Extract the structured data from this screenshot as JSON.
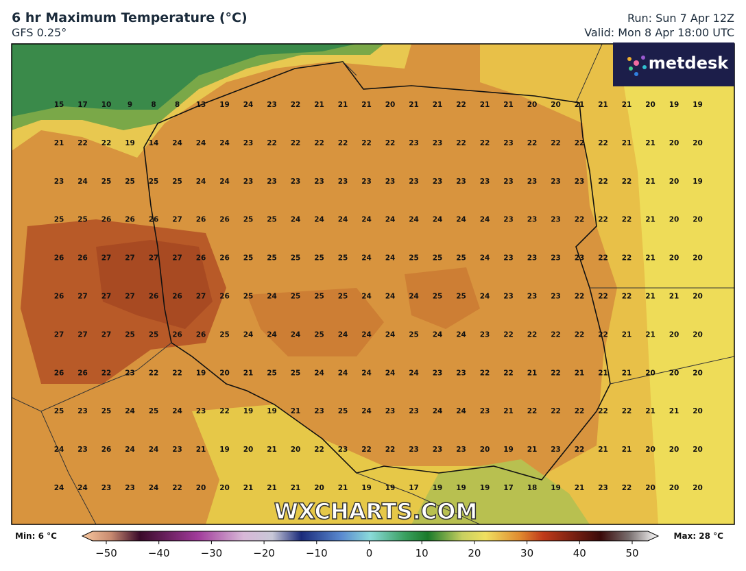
{
  "header": {
    "title": "6 hr Maximum Temperature (°C)",
    "subtitle": "GFS 0.25°",
    "run": "Run: Sun 7 Apr 12Z",
    "valid": "Valid: Mon 8 Apr 18:00 UTC"
  },
  "logo": "metdesk",
  "watermark": "WXCHARTS.COM",
  "grid_values": [
    [
      15,
      17,
      10,
      9,
      8,
      8,
      13,
      19,
      24,
      23,
      22,
      21,
      21,
      21,
      20,
      21,
      21,
      22,
      21,
      21,
      20,
      20,
      21,
      21,
      21,
      20,
      19,
      19
    ],
    [
      21,
      22,
      22,
      19,
      14,
      24,
      24,
      24,
      23,
      22,
      22,
      22,
      22,
      22,
      22,
      23,
      23,
      22,
      22,
      23,
      22,
      22,
      22,
      22,
      21,
      21,
      20,
      20
    ],
    [
      23,
      24,
      25,
      25,
      25,
      25,
      24,
      24,
      23,
      23,
      23,
      23,
      23,
      23,
      23,
      23,
      23,
      23,
      23,
      23,
      23,
      23,
      23,
      22,
      22,
      21,
      20,
      19
    ],
    [
      25,
      25,
      26,
      26,
      26,
      27,
      26,
      26,
      25,
      25,
      24,
      24,
      24,
      24,
      24,
      24,
      24,
      24,
      24,
      23,
      23,
      23,
      22,
      22,
      22,
      21,
      20,
      20
    ],
    [
      26,
      26,
      27,
      27,
      27,
      27,
      26,
      26,
      25,
      25,
      25,
      25,
      25,
      24,
      24,
      25,
      25,
      25,
      24,
      23,
      23,
      23,
      23,
      22,
      22,
      21,
      20,
      20
    ],
    [
      26,
      27,
      27,
      27,
      26,
      26,
      27,
      26,
      25,
      24,
      25,
      25,
      25,
      24,
      24,
      24,
      25,
      25,
      24,
      23,
      23,
      23,
      22,
      22,
      22,
      21,
      21,
      20
    ],
    [
      27,
      27,
      27,
      25,
      25,
      26,
      26,
      25,
      24,
      24,
      24,
      25,
      24,
      24,
      24,
      25,
      24,
      24,
      23,
      22,
      22,
      22,
      22,
      22,
      21,
      21,
      20,
      20
    ],
    [
      26,
      26,
      22,
      23,
      22,
      22,
      19,
      20,
      21,
      25,
      25,
      24,
      24,
      24,
      24,
      24,
      23,
      23,
      22,
      22,
      21,
      22,
      21,
      21,
      21,
      20,
      20,
      20
    ],
    [
      25,
      23,
      25,
      24,
      25,
      24,
      23,
      22,
      19,
      19,
      21,
      23,
      25,
      24,
      23,
      23,
      24,
      24,
      23,
      21,
      22,
      22,
      22,
      22,
      22,
      21,
      21,
      20
    ],
    [
      24,
      23,
      26,
      24,
      24,
      23,
      21,
      19,
      20,
      21,
      20,
      22,
      23,
      22,
      22,
      23,
      23,
      23,
      20,
      19,
      21,
      23,
      22,
      21,
      21,
      20,
      20,
      20
    ],
    [
      24,
      24,
      23,
      23,
      24,
      22,
      20,
      20,
      21,
      21,
      21,
      20,
      21,
      19,
      19,
      17,
      19,
      19,
      19,
      17,
      18,
      19,
      21,
      23,
      22,
      20,
      20,
      20
    ]
  ],
  "colorbar": {
    "min_label": "Min: 6 °C",
    "max_label": "Max: 28 °C",
    "range": [
      -50,
      50
    ],
    "ticks": [
      {
        "value": -50,
        "label": "−50"
      },
      {
        "value": -40,
        "label": "−40"
      },
      {
        "value": -30,
        "label": "−30"
      },
      {
        "value": -20,
        "label": "−20"
      },
      {
        "value": -10,
        "label": "−10"
      },
      0,
      10,
      20,
      30,
      40,
      50
    ]
  }
}
